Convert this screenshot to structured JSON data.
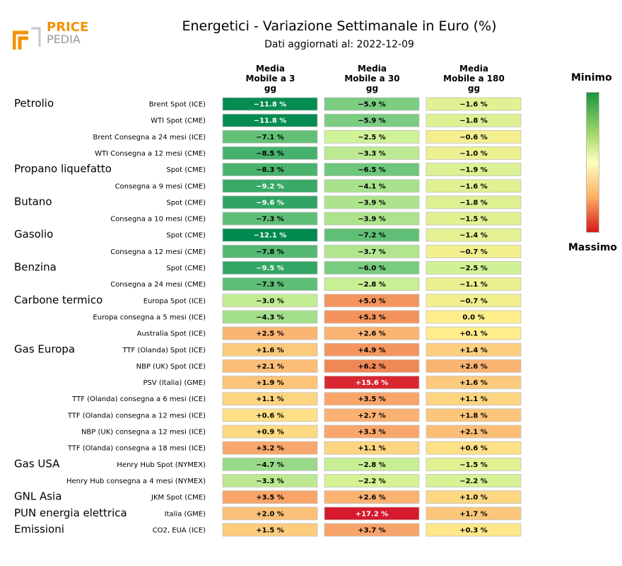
{
  "title": "Energetici - Variazione Settimanale in Euro (%)",
  "subtitle": "Dati aggiornati al: 2022-12-09",
  "logo": {
    "top": "PRICE",
    "bottom": "PEDIA"
  },
  "legend": {
    "min_label": "Minimo",
    "max_label": "Massimo"
  },
  "colors": {
    "min": "#1a9641",
    "mid": "#ffffbf",
    "max": "#d7191c"
  },
  "chart_data": {
    "type": "heatmap",
    "columns": [
      "Media\nMobile a 3\ngg",
      "Media\nMobile a 30\ngg",
      "Media\nMobile a 180\ngg"
    ],
    "rows": [
      {
        "group": "Petrolio",
        "label": "Brent Spot (ICE)",
        "values": [
          -11.8,
          -5.9,
          -1.6
        ]
      },
      {
        "group": "",
        "label": "WTI Spot (CME)",
        "values": [
          -11.8,
          -5.9,
          -1.8
        ]
      },
      {
        "group": "",
        "label": "Brent Consegna a 24 mesi (ICE)",
        "values": [
          -7.1,
          -2.5,
          -0.6
        ]
      },
      {
        "group": "",
        "label": "WTI Consegna a 12 mesi (CME)",
        "values": [
          -8.5,
          -3.3,
          -1.0
        ]
      },
      {
        "group": "Propano liquefatto",
        "label": "Spot (CME)",
        "values": [
          -8.3,
          -6.5,
          -1.9
        ]
      },
      {
        "group": "",
        "label": "Consegna a 9 mesi (CME)",
        "values": [
          -9.2,
          -4.1,
          -1.6
        ]
      },
      {
        "group": "Butano",
        "label": "Spot (CME)",
        "values": [
          -9.6,
          -3.9,
          -1.8
        ]
      },
      {
        "group": "",
        "label": "Consegna a 10 mesi (CME)",
        "values": [
          -7.3,
          -3.9,
          -1.5
        ]
      },
      {
        "group": "Gasolio",
        "label": "Spot (CME)",
        "values": [
          -12.1,
          -7.2,
          -1.4
        ]
      },
      {
        "group": "",
        "label": "Consegna a 12 mesi (CME)",
        "values": [
          -7.8,
          -3.7,
          -0.7
        ]
      },
      {
        "group": "Benzina",
        "label": "Spot (CME)",
        "values": [
          -9.5,
          -6.0,
          -2.5
        ]
      },
      {
        "group": "",
        "label": "Consegna a 24 mesi (CME)",
        "values": [
          -7.3,
          -2.8,
          -1.1
        ]
      },
      {
        "group": "Carbone termico",
        "label": "Europa Spot (ICE)",
        "values": [
          -3.0,
          5.0,
          -0.7
        ]
      },
      {
        "group": "",
        "label": "Europa consegna a 5 mesi (ICE)",
        "values": [
          -4.3,
          5.3,
          0.0
        ]
      },
      {
        "group": "",
        "label": "Australia Spot (ICE)",
        "values": [
          2.5,
          2.6,
          0.1
        ]
      },
      {
        "group": "Gas Europa",
        "label": "TTF (Olanda) Spot (ICE)",
        "values": [
          1.6,
          4.9,
          1.4
        ]
      },
      {
        "group": "",
        "label": "NBP (UK) Spot (ICE)",
        "values": [
          2.1,
          6.2,
          2.6
        ]
      },
      {
        "group": "",
        "label": "PSV (Italia) (GME)",
        "values": [
          1.9,
          15.6,
          1.6
        ]
      },
      {
        "group": "",
        "label": "TTF (Olanda) consegna a 6 mesi (ICE)",
        "values": [
          1.1,
          3.5,
          1.1
        ]
      },
      {
        "group": "",
        "label": "TTF (Olanda) consegna a 12 mesi (ICE)",
        "values": [
          0.6,
          2.7,
          1.8
        ]
      },
      {
        "group": "",
        "label": "NBP (UK) consegna a 12 mesi (ICE)",
        "values": [
          0.9,
          3.3,
          2.1
        ]
      },
      {
        "group": "",
        "label": "TTF (Olanda) consegna a 18 mesi (ICE)",
        "values": [
          3.2,
          1.1,
          0.6
        ]
      },
      {
        "group": "Gas USA",
        "label": "Henry Hub Spot (NYMEX)",
        "values": [
          -4.7,
          -2.8,
          -1.5
        ]
      },
      {
        "group": "",
        "label": "Henry Hub consegna a 4 mesi (NYMEX)",
        "values": [
          -3.3,
          -2.2,
          -2.2
        ]
      },
      {
        "group": "GNL Asia",
        "label": "JKM Spot (CME)",
        "values": [
          3.5,
          2.6,
          1.0
        ]
      },
      {
        "group": "PUN energia elettrica",
        "label": "Italia (GME)",
        "values": [
          2.0,
          17.2,
          1.7
        ]
      },
      {
        "group": "Emissioni",
        "label": "CO2, EUA (ICE)",
        "values": [
          1.5,
          3.7,
          0.3
        ]
      }
    ]
  }
}
